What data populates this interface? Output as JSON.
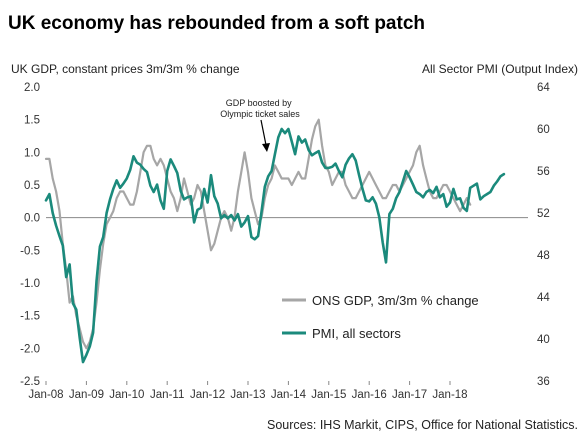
{
  "title": "UK economy has rebounded from a soft patch",
  "source": "Sources: IHS Markit, CIPS, Office for National Statistics.",
  "chart_data": {
    "type": "line",
    "left_axis_label": "UK GDP, constant prices 3m/3m % change",
    "right_axis_label": "All Sector PMI (Output Index)",
    "left_ylim": [
      -2.5,
      2.0
    ],
    "left_ticks": [
      "2.0",
      "1.5",
      "1.0",
      "0.5",
      "0.0",
      "-0.5",
      "-1.0",
      "-1.5",
      "-2.0",
      "-2.5"
    ],
    "right_ylim": [
      36,
      64
    ],
    "right_ticks": [
      "64",
      "60",
      "56",
      "52",
      "48",
      "44",
      "40",
      "36"
    ],
    "x_tick_labels": [
      "Jan-08",
      "Jan-09",
      "Jan-10",
      "Jan-11",
      "Jan-12",
      "Jan-13",
      "Jan-14",
      "Jan-15",
      "Jan-16",
      "Jan-17",
      "Jan-18"
    ],
    "x_start": "Jan-08",
    "annotation": "GDP boosted by Olympic ticket sales",
    "legend_position": "bottom-right",
    "grid": false,
    "series": [
      {
        "name": "ONS GDP, 3m/3m % change",
        "axis": "left",
        "color": "#a6a6a6",
        "values": [
          0.9,
          0.9,
          0.6,
          0.4,
          0.1,
          -0.4,
          -0.8,
          -1.3,
          -1.2,
          -1.5,
          -1.7,
          -1.9,
          -2.0,
          -1.9,
          -1.7,
          -1.3,
          -0.8,
          -0.4,
          -0.1,
          0.0,
          0.1,
          0.3,
          0.4,
          0.4,
          0.3,
          0.2,
          0.2,
          0.4,
          0.7,
          1.0,
          1.1,
          1.1,
          0.9,
          0.8,
          0.9,
          0.8,
          0.6,
          0.4,
          0.3,
          0.1,
          0.3,
          0.6,
          0.4,
          0.2,
          0.3,
          0.5,
          0.4,
          0.1,
          -0.2,
          -0.5,
          -0.4,
          -0.2,
          0.0,
          0.1,
          0.0,
          -0.2,
          0.0,
          0.4,
          0.7,
          1.0,
          0.7,
          0.3,
          0.1,
          -0.1,
          0.0,
          0.3,
          0.5,
          0.6,
          0.8,
          0.7,
          0.6,
          0.6,
          0.6,
          0.5,
          0.6,
          0.7,
          0.6,
          0.6,
          0.9,
          1.2,
          1.4,
          1.5,
          1.1,
          0.8,
          0.7,
          0.5,
          0.6,
          0.7,
          0.7,
          0.5,
          0.4,
          0.3,
          0.3,
          0.4,
          0.5,
          0.6,
          0.7,
          0.6,
          0.5,
          0.4,
          0.3,
          0.3,
          0.4,
          0.5,
          0.5,
          0.4,
          0.5,
          0.6,
          0.7,
          0.8,
          1.0,
          1.1,
          0.8,
          0.6,
          0.4,
          0.3,
          0.3,
          0.4,
          0.5,
          0.5,
          0.4,
          0.3,
          0.2,
          0.1,
          0.2,
          0.3,
          0.2
        ]
      },
      {
        "name": "PMI, all sectors",
        "axis": "right",
        "color": "#1b8a7c",
        "values": [
          53.2,
          53.8,
          52.0,
          50.8,
          49.8,
          48.9,
          45.9,
          47.1,
          43.4,
          42.8,
          40.1,
          37.8,
          38.5,
          39.3,
          40.6,
          45.5,
          48.8,
          49.7,
          52.0,
          53.3,
          54.3,
          55.1,
          54.4,
          54.8,
          55.3,
          56.1,
          57.4,
          56.8,
          56.6,
          56.2,
          55.9,
          54.6,
          54.0,
          54.7,
          53.2,
          52.4,
          56.0,
          57.1,
          56.5,
          55.8,
          54.1,
          53.3,
          53.5,
          53.6,
          51.1,
          52.3,
          52.5,
          54.3,
          53.0,
          55.6,
          53.6,
          52.9,
          51.5,
          51.8,
          51.5,
          51.8,
          51.3,
          51.9,
          50.7,
          51.1,
          51.7,
          49.7,
          49.5,
          49.8,
          52.1,
          54.5,
          55.5,
          56.0,
          57.6,
          59.2,
          60.0,
          59.6,
          60.0,
          58.8,
          57.6,
          59.3,
          58.7,
          59.0,
          58.0,
          57.5,
          57.7,
          57.9,
          56.8,
          56.3,
          56.3,
          56.4,
          56.7,
          56.0,
          55.4,
          56.6,
          57.2,
          57.6,
          57.0,
          55.6,
          54.3,
          53.2,
          53.1,
          53.5,
          52.9,
          51.6,
          49.2,
          47.3,
          51.9,
          52.4,
          53.4,
          54.0,
          55.0,
          56.0,
          55.4,
          54.7,
          54.0,
          53.8,
          53.5,
          54.0,
          54.2,
          53.9,
          54.5,
          53.5,
          53.8,
          52.6,
          53.0,
          54.3,
          53.3,
          53.4,
          52.5,
          52.2,
          54.4,
          54.6,
          54.8,
          53.3,
          53.6,
          53.8,
          54.0,
          54.6,
          55.0,
          55.5,
          55.7
        ]
      }
    ]
  }
}
